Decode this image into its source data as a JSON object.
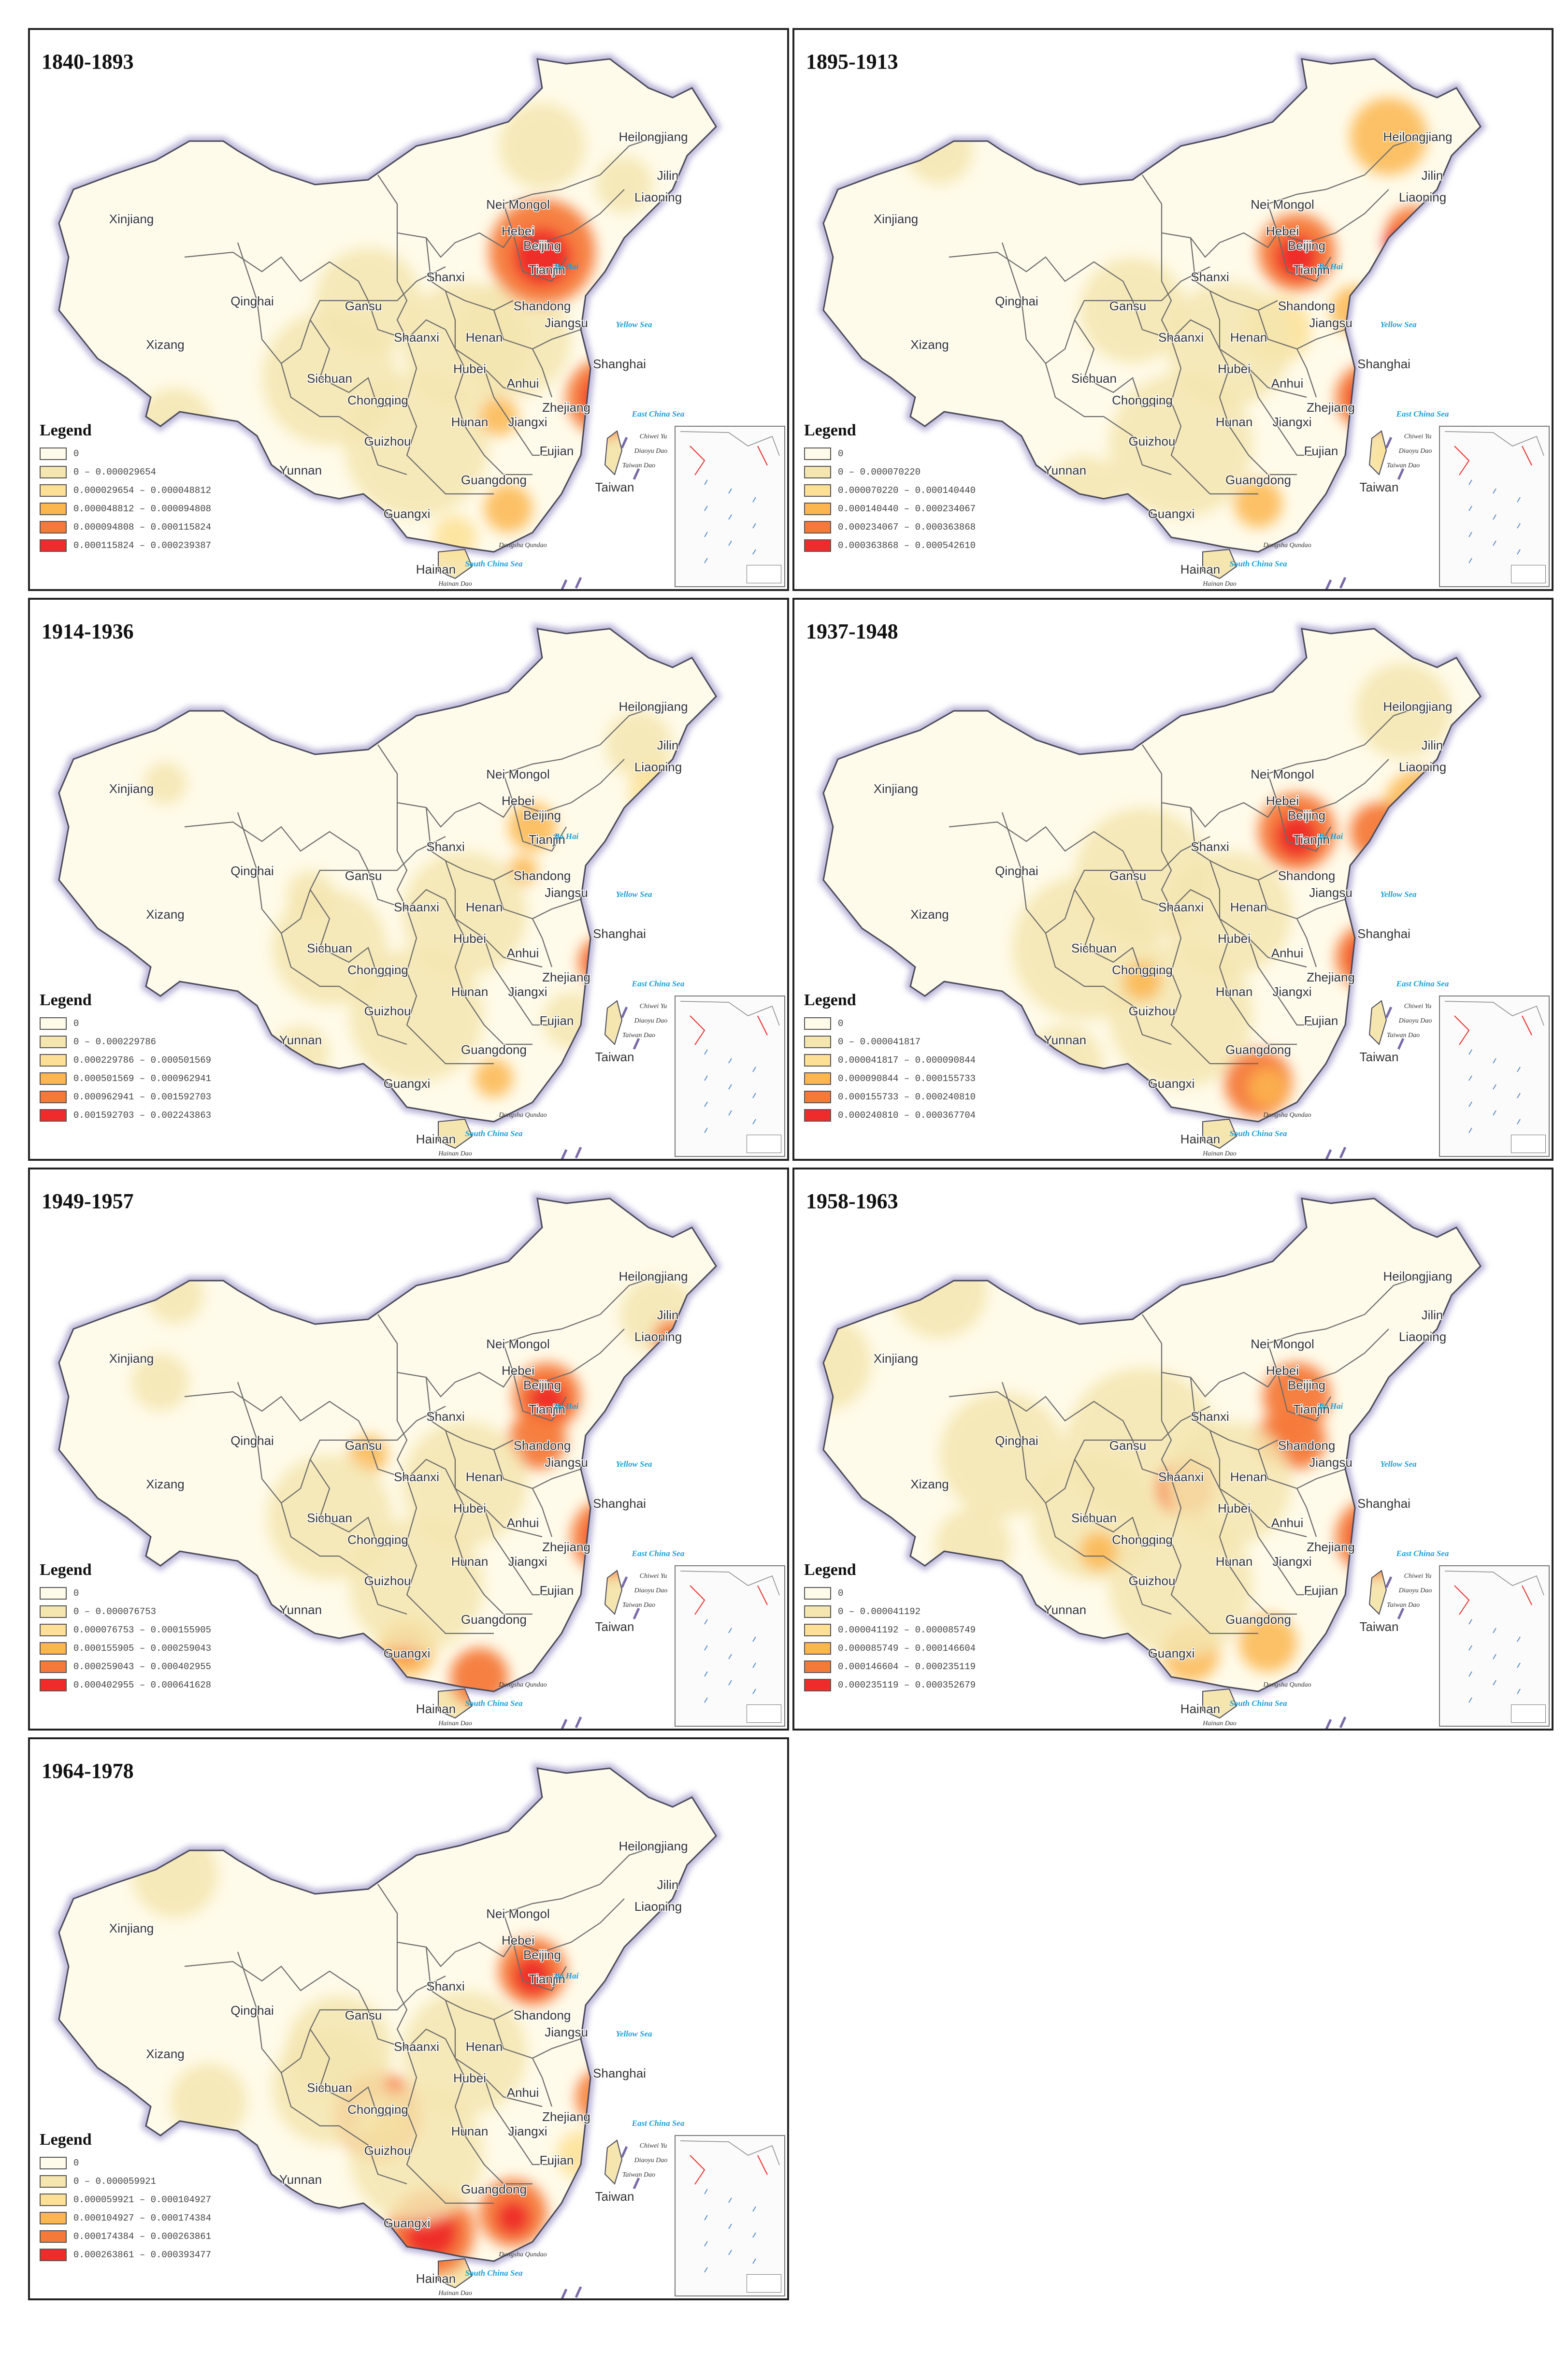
{
  "legend_title": "Legend",
  "colors": [
    "#fffbea",
    "#f5e6b0",
    "#fde095",
    "#fbb64f",
    "#f57a3a",
    "#ef2b2b"
  ],
  "labels": {
    "provinces": {
      "heilongjiang": "Heilongjiang",
      "jilin": "Jilin",
      "liaoning": "Liaoning",
      "xinjiang": "Xinjiang",
      "nei_mongol": "Nei Mongol",
      "hebei": "Hebei",
      "beijing": "Beijing",
      "tianjin": "Tianjin",
      "shanxi": "Shanxi",
      "qinghai": "Qinghai",
      "gansu": "Gansu",
      "shandong": "Shandong",
      "xizang": "Xizang",
      "shaanxi": "Shaanxi",
      "henan": "Henan",
      "jiangsu": "Jiangsu",
      "shanghai": "Shanghai",
      "sichuan": "Sichuan",
      "hubei": "Hubei",
      "anhui": "Anhui",
      "chongqing": "Chongqing",
      "zhejiang": "Zhejiang",
      "hunan": "Hunan",
      "jiangxi": "Jiangxi",
      "guizhou": "Guizhou",
      "fujian": "Fujian",
      "yunnan": "Yunnan",
      "guangdong": "Guangdong",
      "taiwan": "Taiwan",
      "guangxi": "Guangxi",
      "hainan": "Hainan"
    },
    "seas": {
      "bo_hai": "Bo Hai",
      "yellow_sea": "Yellow Sea",
      "east_china_sea": "East China Sea",
      "south_china_sea": "South China Sea"
    },
    "islands": {
      "chiwei_yu": "Chiwei Yu",
      "diaoyu_dao": "Diaoyu Dao",
      "dongsha_qundao": "Dongsha Qundao",
      "hainan_dao": "Hainan Dao",
      "taiwan_dao": "Taiwan Dao"
    }
  },
  "panels": [
    {
      "period": "1840-1893",
      "legend": [
        "0",
        "0 – 0.000029654",
        "0.000029654 – 0.000048812",
        "0.000048812 – 0.000094808",
        "0.000094808 – 0.000115824",
        "0.000115824 – 0.000239387"
      ]
    },
    {
      "period": "1895-1913",
      "legend": [
        "0",
        "0 – 0.000070220",
        "0.000070220 – 0.000140440",
        "0.000140440 – 0.000234067",
        "0.000234067 – 0.000363868",
        "0.000363868 – 0.000542610"
      ]
    },
    {
      "period": "1914-1936",
      "legend": [
        "0",
        "0 – 0.000229786",
        "0.000229786 – 0.000501569",
        "0.000501569 – 0.000962941",
        "0.000962941 – 0.001592703",
        "0.001592703 – 0.002243863"
      ]
    },
    {
      "period": "1937-1948",
      "legend": [
        "0",
        "0 – 0.000041817",
        "0.000041817 – 0.000090844",
        "0.000090844 – 0.000155733",
        "0.000155733 – 0.000240810",
        "0.000240810 – 0.000367704"
      ]
    },
    {
      "period": "1949-1957",
      "legend": [
        "0",
        "0 – 0.000076753",
        "0.000076753 – 0.000155905",
        "0.000155905 – 0.000259043",
        "0.000259043 – 0.000402955",
        "0.000402955 – 0.000641628"
      ]
    },
    {
      "period": "1958-1963",
      "legend": [
        "0",
        "0 – 0.000041192",
        "0.000041192 – 0.000085749",
        "0.000085749 – 0.000146604",
        "0.000146604 – 0.000235119",
        "0.000235119 – 0.000352679"
      ]
    },
    {
      "period": "1964-1978",
      "legend": [
        "0",
        "0 – 0.000059921",
        "0.000059921 – 0.000104927",
        "0.000104927 – 0.000174384",
        "0.000174384 – 0.000263861",
        "0.000263861 – 0.000393477"
      ]
    }
  ]
}
